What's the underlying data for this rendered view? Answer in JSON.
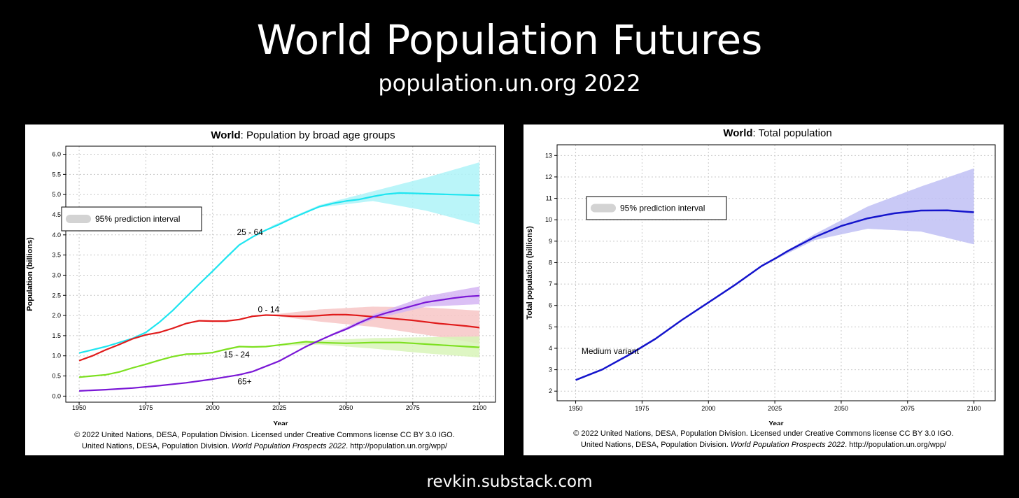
{
  "slide": {
    "title": "World Population Futures",
    "subtitle": "population.un.org 2022",
    "footer": "revkin.substack.com"
  },
  "chart_data": [
    {
      "type": "line",
      "title_bold": "World",
      "title_rest": ": Population by broad age groups",
      "xlabel": "Year",
      "ylabel": "Population (billions)",
      "xlim": [
        1945,
        2106
      ],
      "ylim": [
        -0.15,
        6.2
      ],
      "xticks": [
        1950,
        1975,
        2000,
        2025,
        2050,
        2075,
        2100
      ],
      "yticks": [
        "0.0",
        "0.5",
        "1.0",
        "1.5",
        "2.0",
        "2.5",
        "3.0",
        "3.5",
        "4.0",
        "4.5",
        "5.0",
        "5.5",
        "6.0"
      ],
      "grid": true,
      "legend": {
        "label": "95% prediction interval",
        "position": "left-middle",
        "swatch_color": "#d3d3d3"
      },
      "series": [
        {
          "name": "25 - 64",
          "color": "#1fe5f0",
          "band_color": "#aef3f8",
          "x": [
            1950,
            1960,
            1970,
            1975,
            1980,
            1985,
            1990,
            1995,
            2000,
            2005,
            2010,
            2015,
            2020,
            2025,
            2030,
            2035,
            2040,
            2045,
            2050,
            2055,
            2060,
            2065,
            2070,
            2075,
            2080,
            2085,
            2090,
            2095,
            2100
          ],
          "values": [
            1.07,
            1.23,
            1.43,
            1.58,
            1.83,
            2.12,
            2.45,
            2.78,
            3.1,
            3.43,
            3.75,
            3.95,
            4.12,
            4.26,
            4.42,
            4.56,
            4.7,
            4.78,
            4.84,
            4.88,
            4.95,
            5.01,
            5.04,
            5.03,
            5.02,
            5.01,
            5.0,
            4.99,
            4.98
          ],
          "band": {
            "x": [
              2022,
              2040,
              2060,
              2080,
              2100
            ],
            "lower": [
              4.18,
              4.68,
              4.84,
              4.6,
              4.25
            ],
            "upper": [
              4.22,
              4.74,
              5.08,
              5.42,
              5.8
            ]
          }
        },
        {
          "name": "0 - 14",
          "color": "#e01b1b",
          "band_color": "#f7c6c6",
          "x": [
            1950,
            1955,
            1960,
            1965,
            1970,
            1975,
            1980,
            1985,
            1990,
            1995,
            2000,
            2005,
            2010,
            2015,
            2020,
            2025,
            2030,
            2035,
            2040,
            2045,
            2050,
            2055,
            2060,
            2065,
            2070,
            2075,
            2080,
            2085,
            2090,
            2095,
            2100
          ],
          "values": [
            0.88,
            1.0,
            1.15,
            1.28,
            1.42,
            1.52,
            1.58,
            1.68,
            1.8,
            1.87,
            1.86,
            1.86,
            1.9,
            1.98,
            2.01,
            2.0,
            1.98,
            1.98,
            2.0,
            2.02,
            2.02,
            2.0,
            1.97,
            1.94,
            1.91,
            1.88,
            1.84,
            1.8,
            1.77,
            1.74,
            1.7
          ],
          "band": {
            "x": [
              2022,
              2040,
              2060,
              2080,
              2100
            ],
            "lower": [
              2.0,
              1.85,
              1.72,
              1.52,
              1.3
            ],
            "upper": [
              2.02,
              2.15,
              2.22,
              2.2,
              2.12
            ]
          }
        },
        {
          "name": "15 - 24",
          "color": "#7de020",
          "band_color": "#d8f5b8",
          "x": [
            1950,
            1955,
            1960,
            1965,
            1970,
            1975,
            1980,
            1985,
            1990,
            1995,
            2000,
            2005,
            2010,
            2015,
            2020,
            2025,
            2030,
            2035,
            2040,
            2045,
            2050,
            2055,
            2060,
            2065,
            2070,
            2075,
            2080,
            2085,
            2090,
            2095,
            2100
          ],
          "values": [
            0.47,
            0.5,
            0.53,
            0.6,
            0.7,
            0.79,
            0.89,
            0.98,
            1.04,
            1.05,
            1.08,
            1.16,
            1.23,
            1.22,
            1.23,
            1.27,
            1.31,
            1.35,
            1.33,
            1.32,
            1.31,
            1.32,
            1.33,
            1.33,
            1.33,
            1.31,
            1.29,
            1.27,
            1.25,
            1.23,
            1.21
          ],
          "band": {
            "x": [
              2022,
              2040,
              2060,
              2080,
              2100
            ],
            "lower": [
              1.24,
              1.28,
              1.18,
              1.06,
              0.96
            ],
            "upper": [
              1.26,
              1.38,
              1.44,
              1.46,
              1.48
            ]
          }
        },
        {
          "name": "65+",
          "color": "#7a17d6",
          "band_color": "#d5b5f3",
          "x": [
            1950,
            1960,
            1970,
            1980,
            1990,
            2000,
            2010,
            2015,
            2020,
            2025,
            2030,
            2035,
            2040,
            2045,
            2050,
            2055,
            2060,
            2065,
            2070,
            2075,
            2080,
            2085,
            2090,
            2095,
            2100
          ],
          "values": [
            0.13,
            0.16,
            0.2,
            0.26,
            0.33,
            0.42,
            0.53,
            0.61,
            0.74,
            0.87,
            1.05,
            1.23,
            1.38,
            1.53,
            1.66,
            1.82,
            1.96,
            2.06,
            2.15,
            2.24,
            2.33,
            2.38,
            2.43,
            2.47,
            2.49
          ],
          "band": {
            "x": [
              2022,
              2040,
              2060,
              2080,
              2100
            ],
            "lower": [
              0.78,
              1.37,
              1.9,
              2.22,
              2.28
            ],
            "upper": [
              0.8,
              1.4,
              2.02,
              2.48,
              2.72
            ]
          }
        }
      ],
      "annotations": [
        {
          "text": "25 - 64",
          "x": 2014,
          "y": 4.0
        },
        {
          "text": "0 - 14",
          "x": 2021,
          "y": 2.08
        },
        {
          "text": "15 - 24",
          "x": 2009,
          "y": 0.96
        },
        {
          "text": "65+",
          "x": 2012,
          "y": 0.29
        }
      ],
      "credit": [
        "© 2022 United Nations, DESA, Population Division. Licensed under Creative Commons license CC BY 3.0 IGO.",
        "United Nations, DESA, Population Division. ",
        "World Population Prospects 2022",
        ". http://population.un.org/wpp/"
      ]
    },
    {
      "type": "line",
      "title_bold": "World",
      "title_rest": ": Total population",
      "xlabel": "Year",
      "ylabel": "Total population (billions)",
      "xlim": [
        1943,
        2108
      ],
      "ylim": [
        1.55,
        13.5
      ],
      "xticks": [
        1950,
        1975,
        2000,
        2025,
        2050,
        2075,
        2100
      ],
      "yticks": [
        "2",
        "3",
        "4",
        "5",
        "6",
        "7",
        "8",
        "9",
        "10",
        "11",
        "12",
        "13"
      ],
      "grid": true,
      "legend": {
        "label": "95% prediction interval",
        "position": "top-left",
        "swatch_color": "#d3d3d3"
      },
      "series": [
        {
          "name": "Medium variant",
          "color": "#1414cc",
          "band_color": "#c0c0f4",
          "x": [
            1950,
            1960,
            1970,
            1980,
            1990,
            2000,
            2010,
            2020,
            2025,
            2030,
            2040,
            2050,
            2060,
            2070,
            2080,
            2090,
            2100
          ],
          "values": [
            2.52,
            3.01,
            3.69,
            4.44,
            5.32,
            6.14,
            6.96,
            7.84,
            8.18,
            8.55,
            9.19,
            9.71,
            10.07,
            10.3,
            10.43,
            10.44,
            10.35
          ],
          "band": {
            "x": [
              2022,
              2040,
              2060,
              2080,
              2100
            ],
            "lower": [
              7.95,
              9.05,
              9.58,
              9.45,
              8.85
            ],
            "upper": [
              7.99,
              9.33,
              10.62,
              11.55,
              12.4
            ]
          }
        }
      ],
      "annotations": [
        {
          "text": "Medium variant",
          "x": 1963,
          "y": 3.74
        }
      ],
      "credit": [
        "© 2022 United Nations, DESA, Population Division. Licensed under Creative Commons license CC BY 3.0 IGO.",
        "United Nations, DESA, Population Division. ",
        "World Population Prospects 2022",
        ". http://population.un.org/wpp/"
      ]
    }
  ]
}
